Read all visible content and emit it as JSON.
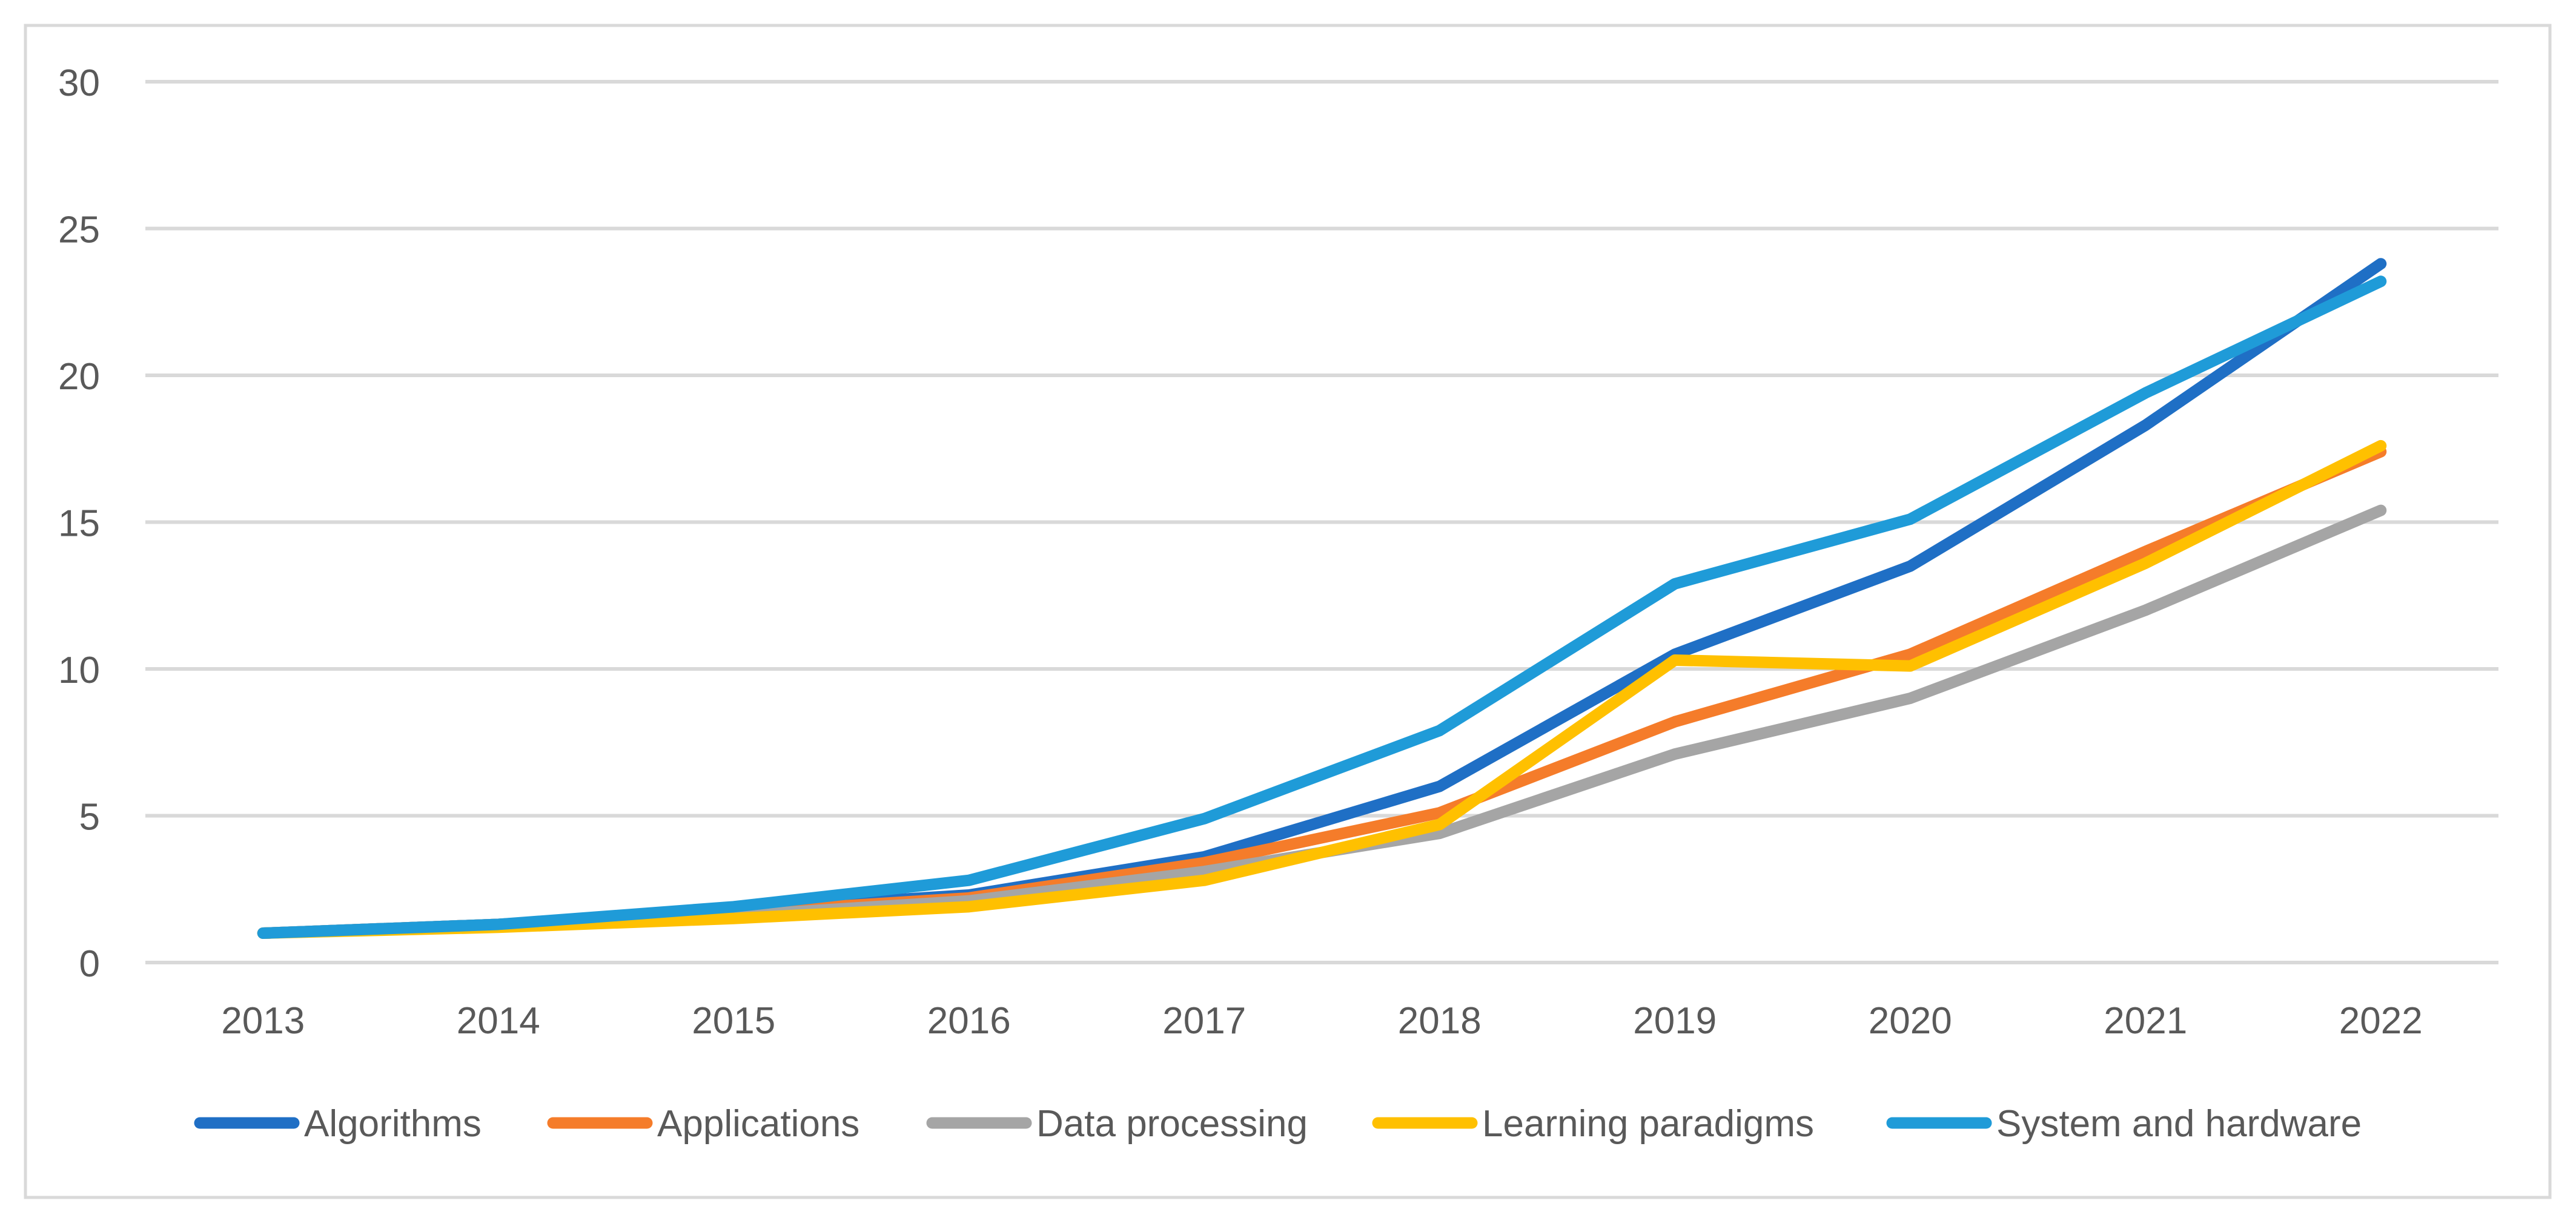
{
  "chart_data": {
    "type": "line",
    "title": "",
    "xlabel": "",
    "ylabel": "",
    "categories": [
      "2013",
      "2014",
      "2015",
      "2016",
      "2017",
      "2018",
      "2019",
      "2020",
      "2021",
      "2022"
    ],
    "ylim": [
      0,
      30
    ],
    "yticks": [
      "0",
      "5",
      "10",
      "15",
      "20",
      "25",
      "30"
    ],
    "grid": true,
    "legend_position": "bottom",
    "series": [
      {
        "name": "Algorithms",
        "color": "#1F6FC5",
        "values": [
          1.0,
          1.3,
          1.8,
          2.3,
          3.6,
          6.0,
          10.5,
          13.5,
          18.3,
          23.8
        ]
      },
      {
        "name": "Applications",
        "color": "#F57C2A",
        "values": [
          1.0,
          1.3,
          1.7,
          2.2,
          3.4,
          5.1,
          8.2,
          10.5,
          14.0,
          17.4
        ]
      },
      {
        "name": "Data processing",
        "color": "#A5A5A5",
        "values": [
          1.0,
          1.3,
          1.6,
          2.1,
          3.1,
          4.4,
          7.1,
          9.0,
          12.0,
          15.4
        ]
      },
      {
        "name": "Learning paradigms",
        "color": "#FFC000",
        "values": [
          1.0,
          1.2,
          1.5,
          1.9,
          2.8,
          4.7,
          10.3,
          10.1,
          13.6,
          17.6
        ]
      },
      {
        "name": "System and hardware",
        "color": "#1F9BD8",
        "values": [
          1.0,
          1.3,
          1.9,
          2.8,
          4.9,
          7.9,
          12.9,
          15.1,
          19.4,
          23.2
        ]
      }
    ]
  }
}
